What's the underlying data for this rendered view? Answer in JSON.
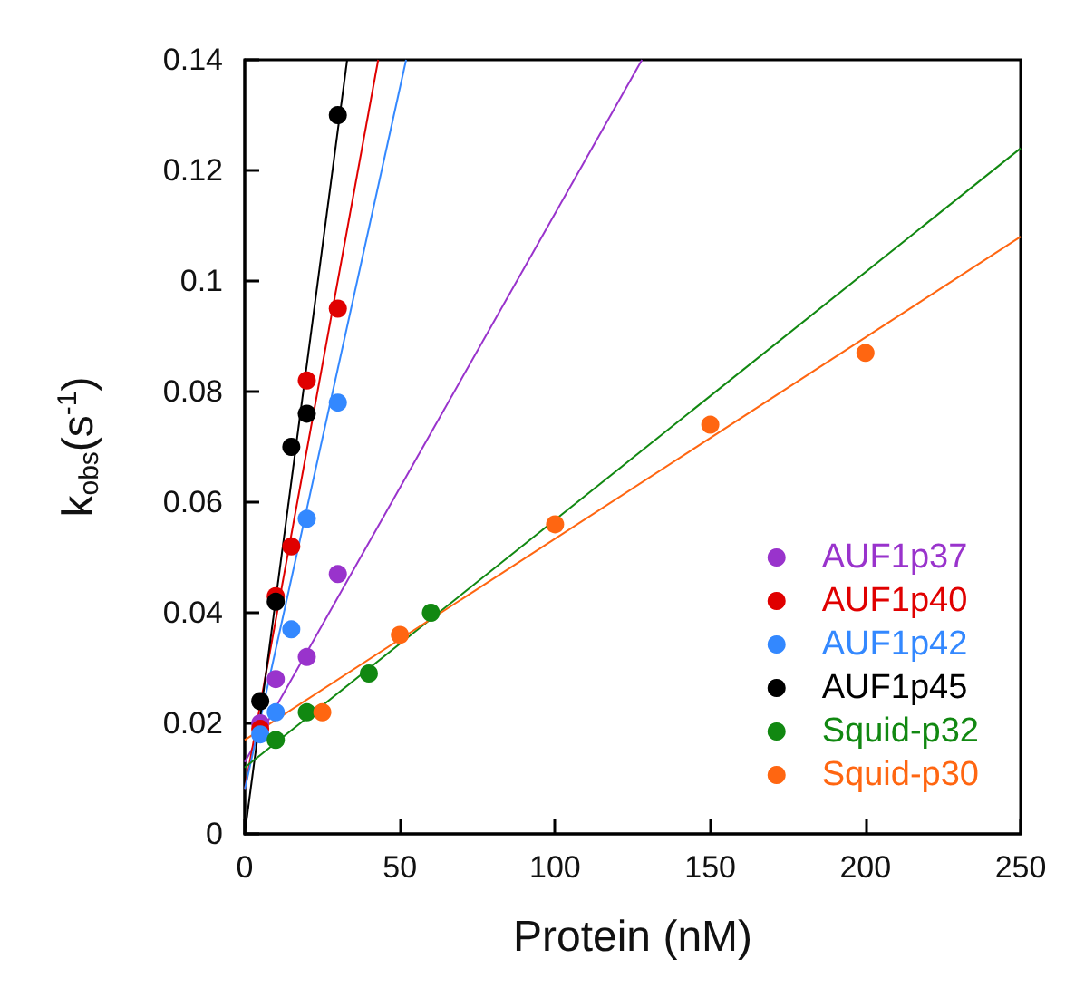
{
  "chart_data": {
    "type": "scatter",
    "xlabel": "Protein (nM)",
    "ylabel": "k$_{obs}$(s$^{-1}$)",
    "xlim": [
      0,
      250
    ],
    "xticks": [
      0,
      50,
      100,
      150,
      200,
      250
    ],
    "ylim": [
      0,
      0.14
    ],
    "yticks": [
      0,
      0.02,
      0.04,
      0.06,
      0.08,
      0.1,
      0.12,
      0.14
    ],
    "grid": false,
    "legend": "bottom right",
    "marker": "circle",
    "series": [
      {
        "name": "AUF1p37",
        "color": "#9933cc",
        "x": [
          5,
          10,
          20,
          30
        ],
        "values": [
          0.02,
          0.028,
          0.032,
          0.047
        ]
      },
      {
        "name": "AUF1p40",
        "color": "#e00000",
        "x": [
          5,
          10,
          15,
          20,
          30
        ],
        "values": [
          0.019,
          0.043,
          0.052,
          0.082,
          0.095
        ]
      },
      {
        "name": "AUF1p42",
        "color": "#3388ff",
        "x": [
          5,
          10,
          15,
          20,
          30
        ],
        "values": [
          0.018,
          0.022,
          0.037,
          0.057,
          0.078
        ]
      },
      {
        "name": "AUF1p45",
        "color": "#000000",
        "x": [
          5,
          10,
          15,
          20,
          30
        ],
        "values": [
          0.024,
          0.042,
          0.07,
          0.076,
          0.13
        ]
      },
      {
        "name": "Squid-p32",
        "color": "#118811",
        "x": [
          10,
          20,
          40,
          60
        ],
        "values": [
          0.017,
          0.022,
          0.029,
          0.04
        ]
      },
      {
        "name": "Squid-p30",
        "color": "#ff6611",
        "x": [
          25,
          50,
          100,
          150,
          200
        ],
        "values": [
          0.022,
          0.036,
          0.056,
          0.074,
          0.087
        ]
      },
      {
        "type": "line",
        "marker": "none",
        "color": "#9933cc",
        "x": [
          0,
          128
        ],
        "values": [
          0.013,
          0.14
        ]
      },
      {
        "type": "line",
        "marker": "none",
        "color": "#e00000",
        "x": [
          0,
          43
        ],
        "values": [
          0.008,
          0.14
        ]
      },
      {
        "type": "line",
        "marker": "none",
        "color": "#3388ff",
        "x": [
          0,
          52
        ],
        "values": [
          0.008,
          0.14
        ]
      },
      {
        "type": "line",
        "marker": "none",
        "color": "#000000",
        "x": [
          0,
          33
        ],
        "values": [
          0,
          0.14
        ]
      },
      {
        "type": "line",
        "marker": "none",
        "color": "#118811",
        "x": [
          0,
          250
        ],
        "values": [
          0.012,
          0.124
        ]
      },
      {
        "type": "line",
        "marker": "none",
        "color": "#ff6611",
        "x": [
          0,
          250
        ],
        "values": [
          0.017,
          0.108
        ]
      }
    ]
  }
}
